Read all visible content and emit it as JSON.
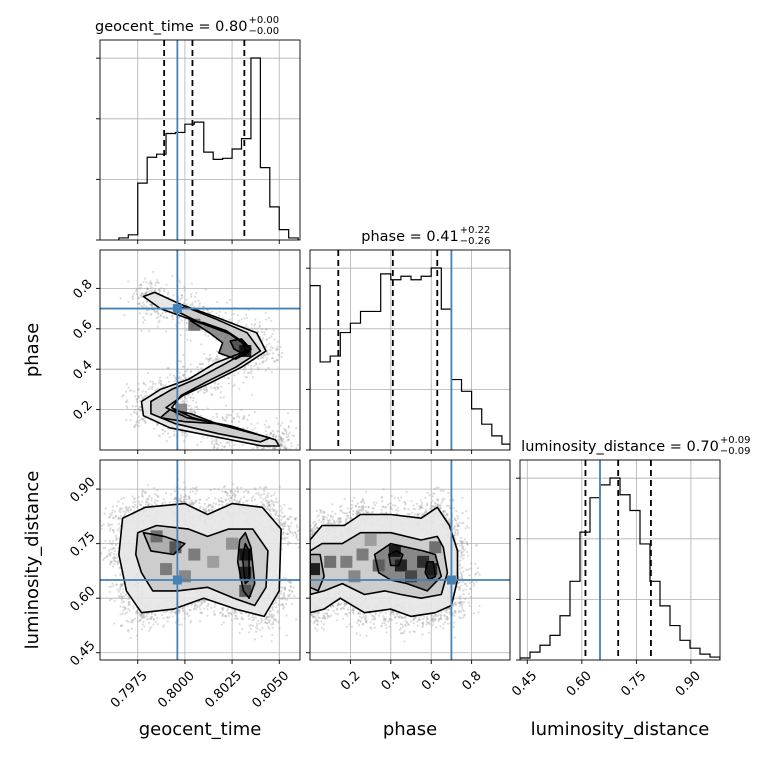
{
  "chart_data": {
    "type": "corner",
    "parameters": [
      "geocent_time",
      "phase",
      "luminosity_distance"
    ],
    "truths": {
      "geocent_time": 0.7996,
      "phase": 0.7,
      "luminosity_distance": 0.65
    },
    "truth_color": "#4682b4",
    "ranges": {
      "geocent_time": [
        0.7955,
        0.8061
      ],
      "phase": [
        0.0,
        0.99
      ],
      "luminosity_distance": [
        0.43,
        0.98
      ]
    },
    "ticks": {
      "geocent_time": [
        {
          "value": 0.7975,
          "label": "0.7975"
        },
        {
          "value": 0.8,
          "label": "0.8000"
        },
        {
          "value": 0.8025,
          "label": "0.8025"
        },
        {
          "value": 0.805,
          "label": "0.8050"
        }
      ],
      "phase": [
        {
          "value": 0.2,
          "label": "0.2"
        },
        {
          "value": 0.4,
          "label": "0.4"
        },
        {
          "value": 0.6,
          "label": "0.6"
        },
        {
          "value": 0.8,
          "label": "0.8"
        }
      ],
      "luminosity_distance": [
        {
          "value": 0.45,
          "label": "0.45"
        },
        {
          "value": 0.6,
          "label": "0.60"
        },
        {
          "value": 0.75,
          "label": "0.75"
        },
        {
          "value": 0.9,
          "label": "0.90"
        }
      ]
    },
    "titles": [
      {
        "param": "geocent_time",
        "main": "geocent_time = 0.80",
        "plus": "+0.00",
        "minus": "−0.00"
      },
      {
        "param": "phase",
        "main": "phase = 0.41",
        "plus": "+0.22",
        "minus": "−0.26"
      },
      {
        "param": "luminosity_distance",
        "main": "luminosity_distance = 0.70",
        "plus": "+0.09",
        "minus": "−0.09"
      }
    ],
    "quantiles": {
      "geocent_time": [
        0.7989,
        0.8004,
        0.80315
      ],
      "phase": [
        0.14,
        0.41,
        0.63
      ],
      "luminosity_distance": [
        0.61,
        0.7,
        0.79
      ]
    },
    "histograms": {
      "geocent_time": {
        "bin_edges": [
          0.7965,
          0.797,
          0.7975,
          0.798,
          0.7985,
          0.799,
          0.7995,
          0.8,
          0.8005,
          0.801,
          0.8015,
          0.802,
          0.8025,
          0.803,
          0.8035,
          0.804,
          0.8045,
          0.805,
          0.8055,
          0.806
        ],
        "counts": [
          2,
          5,
          55,
          80,
          83,
          103,
          104,
          112,
          114,
          85,
          78,
          79,
          88,
          98,
          176,
          70,
          32,
          10,
          2
        ]
      },
      "phase": {
        "bin_edges": [
          0.0,
          0.05,
          0.1,
          0.15,
          0.2,
          0.25,
          0.3,
          0.35,
          0.4,
          0.45,
          0.5,
          0.55,
          0.6,
          0.65,
          0.7,
          0.75,
          0.8,
          0.85,
          0.9,
          0.95,
          0.99
        ],
        "counts": [
          140,
          75,
          80,
          100,
          108,
          118,
          118,
          150,
          145,
          148,
          145,
          148,
          155,
          120,
          60,
          50,
          35,
          22,
          12,
          5
        ]
      },
      "luminosity_distance": {
        "bin_edges": [
          0.43,
          0.4575,
          0.485,
          0.5125,
          0.54,
          0.5675,
          0.595,
          0.6225,
          0.65,
          0.6775,
          0.705,
          0.7325,
          0.76,
          0.7875,
          0.815,
          0.8425,
          0.87,
          0.8975,
          0.925,
          0.9525,
          0.98
        ],
        "counts": [
          2,
          8,
          15,
          25,
          45,
          80,
          130,
          165,
          178,
          185,
          168,
          152,
          118,
          80,
          55,
          35,
          20,
          12,
          6,
          3
        ]
      }
    },
    "contours": {
      "phase_vs_geocent_time": [
        [
          [
            0.8041,
            0.02
          ],
          [
            0.8019,
            0.06
          ],
          [
            0.7992,
            0.11
          ],
          [
            0.7978,
            0.17
          ],
          [
            0.7977,
            0.24
          ],
          [
            0.7987,
            0.3
          ],
          [
            0.8002,
            0.35
          ],
          [
            0.8016,
            0.43
          ],
          [
            0.8035,
            0.5
          ],
          [
            0.8023,
            0.58
          ],
          [
            0.8005,
            0.64
          ],
          [
            0.7987,
            0.7
          ],
          [
            0.7978,
            0.76
          ],
          [
            0.7984,
            0.78
          ],
          [
            0.7998,
            0.72
          ],
          [
            0.8016,
            0.66
          ],
          [
            0.8038,
            0.58
          ],
          [
            0.8043,
            0.49
          ],
          [
            0.803,
            0.41
          ],
          [
            0.8013,
            0.33
          ],
          [
            0.7999,
            0.27
          ],
          [
            0.799,
            0.21
          ],
          [
            0.8001,
            0.16
          ],
          [
            0.8024,
            0.12
          ],
          [
            0.8048,
            0.05
          ],
          [
            0.805,
            0.02
          ]
        ],
        [
          [
            0.804,
            0.04
          ],
          [
            0.8018,
            0.08
          ],
          [
            0.7995,
            0.13
          ],
          [
            0.7982,
            0.18
          ],
          [
            0.7982,
            0.24
          ],
          [
            0.7993,
            0.3
          ],
          [
            0.8008,
            0.36
          ],
          [
            0.8022,
            0.43
          ],
          [
            0.8035,
            0.5
          ],
          [
            0.8025,
            0.57
          ],
          [
            0.8008,
            0.63
          ],
          [
            0.7995,
            0.69
          ],
          [
            0.8,
            0.71
          ],
          [
            0.8016,
            0.65
          ],
          [
            0.8033,
            0.58
          ],
          [
            0.804,
            0.49
          ],
          [
            0.8027,
            0.41
          ],
          [
            0.8012,
            0.34
          ],
          [
            0.7998,
            0.27
          ],
          [
            0.7993,
            0.21
          ],
          [
            0.8004,
            0.16
          ],
          [
            0.8025,
            0.11
          ],
          [
            0.8045,
            0.06
          ]
        ],
        [
          [
            0.7987,
            0.16
          ],
          [
            0.8,
            0.14
          ],
          [
            0.8017,
            0.13
          ],
          [
            0.8003,
            0.18
          ],
          [
            0.7992,
            0.2
          ]
        ],
        [
          [
            0.8018,
            0.48
          ],
          [
            0.8027,
            0.45
          ],
          [
            0.8033,
            0.48
          ],
          [
            0.803,
            0.54
          ],
          [
            0.8022,
            0.59
          ],
          [
            0.801,
            0.63
          ],
          [
            0.8003,
            0.64
          ],
          [
            0.8013,
            0.58
          ],
          [
            0.802,
            0.53
          ]
        ],
        [
          [
            0.8026,
            0.5
          ],
          [
            0.8032,
            0.47
          ],
          [
            0.8035,
            0.5
          ],
          [
            0.803,
            0.55
          ],
          [
            0.8024,
            0.54
          ]
        ]
      ],
      "luminosity_distance_vs_geocent_time": [
        [
          [
            0.7967,
            0.82
          ],
          [
            0.7979,
            0.85
          ],
          [
            0.8,
            0.86
          ],
          [
            0.8012,
            0.83
          ],
          [
            0.8025,
            0.86
          ],
          [
            0.8041,
            0.85
          ],
          [
            0.8051,
            0.79
          ],
          [
            0.805,
            0.62
          ],
          [
            0.8042,
            0.55
          ],
          [
            0.8027,
            0.57
          ],
          [
            0.801,
            0.6
          ],
          [
            0.7994,
            0.57
          ],
          [
            0.7977,
            0.56
          ],
          [
            0.7969,
            0.62
          ],
          [
            0.7965,
            0.72
          ]
        ],
        [
          [
            0.7975,
            0.78
          ],
          [
            0.7985,
            0.8
          ],
          [
            0.8002,
            0.79
          ],
          [
            0.8012,
            0.77
          ],
          [
            0.8023,
            0.79
          ],
          [
            0.8036,
            0.79
          ],
          [
            0.8044,
            0.73
          ],
          [
            0.8043,
            0.63
          ],
          [
            0.8037,
            0.58
          ],
          [
            0.8026,
            0.6
          ],
          [
            0.8012,
            0.63
          ],
          [
            0.7996,
            0.62
          ],
          [
            0.7983,
            0.62
          ],
          [
            0.7977,
            0.67
          ],
          [
            0.7974,
            0.72
          ]
        ],
        [
          [
            0.7978,
            0.78
          ],
          [
            0.7989,
            0.77
          ],
          [
            0.8,
            0.75
          ],
          [
            0.7994,
            0.72
          ],
          [
            0.7982,
            0.73
          ]
        ],
        [
          [
            0.8028,
            0.7
          ],
          [
            0.8031,
            0.62
          ],
          [
            0.8034,
            0.6
          ],
          [
            0.8037,
            0.64
          ],
          [
            0.8035,
            0.74
          ],
          [
            0.8032,
            0.78
          ],
          [
            0.8029,
            0.76
          ]
        ],
        [
          [
            0.80305,
            0.71
          ],
          [
            0.8032,
            0.64
          ],
          [
            0.8034,
            0.65
          ],
          [
            0.8034,
            0.73
          ],
          [
            0.8032,
            0.75
          ]
        ]
      ],
      "luminosity_distance_vs_phase": [
        [
          [
            0.0,
            0.76
          ],
          [
            0.06,
            0.8
          ],
          [
            0.17,
            0.8
          ],
          [
            0.25,
            0.83
          ],
          [
            0.4,
            0.83
          ],
          [
            0.55,
            0.82
          ],
          [
            0.63,
            0.85
          ],
          [
            0.69,
            0.8
          ],
          [
            0.73,
            0.73
          ],
          [
            0.73,
            0.65
          ],
          [
            0.7,
            0.58
          ],
          [
            0.62,
            0.56
          ],
          [
            0.5,
            0.55
          ],
          [
            0.4,
            0.57
          ],
          [
            0.27,
            0.56
          ],
          [
            0.15,
            0.6
          ],
          [
            0.07,
            0.57
          ],
          [
            0.0,
            0.56
          ]
        ],
        [
          [
            0.0,
            0.73
          ],
          [
            0.06,
            0.75
          ],
          [
            0.16,
            0.75
          ],
          [
            0.25,
            0.78
          ],
          [
            0.4,
            0.78
          ],
          [
            0.55,
            0.76
          ],
          [
            0.63,
            0.77
          ],
          [
            0.66,
            0.74
          ],
          [
            0.68,
            0.67
          ],
          [
            0.65,
            0.61
          ],
          [
            0.55,
            0.6
          ],
          [
            0.45,
            0.61
          ],
          [
            0.37,
            0.62
          ],
          [
            0.27,
            0.61
          ],
          [
            0.16,
            0.64
          ],
          [
            0.07,
            0.62
          ],
          [
            0.0,
            0.61
          ]
        ],
        [
          [
            0.0,
            0.72
          ],
          [
            0.05,
            0.72
          ],
          [
            0.07,
            0.66
          ],
          [
            0.04,
            0.62
          ],
          [
            0.0,
            0.63
          ]
        ],
        [
          [
            0.32,
            0.72
          ],
          [
            0.4,
            0.75
          ],
          [
            0.48,
            0.74
          ],
          [
            0.56,
            0.73
          ],
          [
            0.62,
            0.72
          ],
          [
            0.65,
            0.66
          ],
          [
            0.58,
            0.62
          ],
          [
            0.48,
            0.64
          ],
          [
            0.4,
            0.65
          ],
          [
            0.34,
            0.67
          ]
        ],
        [
          [
            0.39,
            0.72
          ],
          [
            0.43,
            0.73
          ],
          [
            0.46,
            0.72
          ],
          [
            0.44,
            0.69
          ],
          [
            0.4,
            0.69
          ]
        ],
        [
          [
            0.58,
            0.7
          ],
          [
            0.61,
            0.7
          ],
          [
            0.62,
            0.66
          ],
          [
            0.59,
            0.65
          ],
          [
            0.57,
            0.67
          ]
        ]
      ]
    },
    "density_cells": {
      "luminosity_distance_vs_geocent_time": [
        [
          0.7985,
          0.77,
          0.6
        ],
        [
          0.7995,
          0.74,
          0.7
        ],
        [
          0.8005,
          0.72,
          0.55
        ],
        [
          0.8015,
          0.7,
          0.4
        ],
        [
          0.799,
          0.68,
          0.55
        ],
        [
          0.8,
          0.66,
          0.5
        ],
        [
          0.8032,
          0.72,
          0.95
        ],
        [
          0.8032,
          0.67,
          0.9
        ],
        [
          0.8032,
          0.62,
          0.7
        ],
        [
          0.8025,
          0.75,
          0.45
        ]
      ],
      "luminosity_distance_vs_phase": [
        [
          0.02,
          0.68,
          0.95
        ],
        [
          0.1,
          0.7,
          0.6
        ],
        [
          0.18,
          0.7,
          0.55
        ],
        [
          0.26,
          0.72,
          0.55
        ],
        [
          0.34,
          0.69,
          0.65
        ],
        [
          0.42,
          0.73,
          0.95
        ],
        [
          0.45,
          0.69,
          0.9
        ],
        [
          0.5,
          0.66,
          0.75
        ],
        [
          0.56,
          0.7,
          0.85
        ],
        [
          0.6,
          0.68,
          0.9
        ],
        [
          0.62,
          0.74,
          0.6
        ],
        [
          0.22,
          0.66,
          0.5
        ],
        [
          0.3,
          0.76,
          0.4
        ]
      ],
      "phase_vs_geocent_time": [
        [
          0.8032,
          0.49,
          0.95
        ],
        [
          0.8005,
          0.62,
          0.6
        ],
        [
          0.7998,
          0.2,
          0.5
        ]
      ]
    },
    "grid": true,
    "xlabel_bottom": [
      "geocent_time",
      "phase",
      "luminosity_distance"
    ],
    "ylabel_left": [
      "phase",
      "luminosity_distance"
    ]
  }
}
